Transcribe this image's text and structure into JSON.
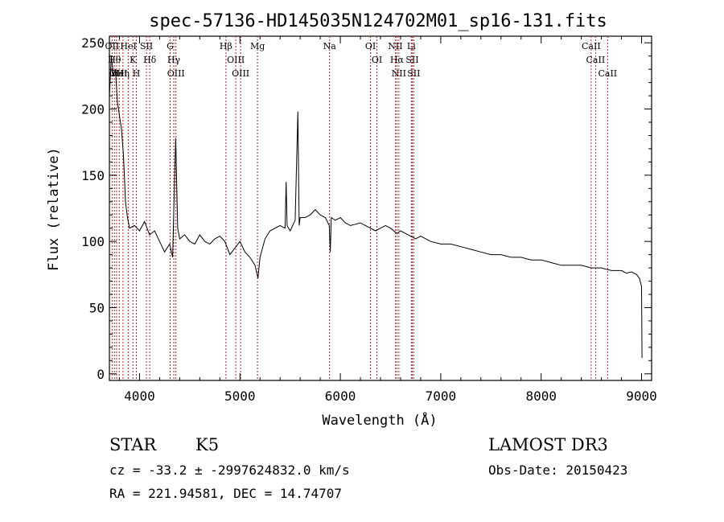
{
  "chart_data": {
    "type": "line",
    "title": "spec-57136-HD145035N124702M01_sp16-131.fits",
    "xlabel": "Wavelength (Å)",
    "ylabel": "Flux (relative)",
    "xlim": [
      3700,
      9100
    ],
    "ylim": [
      -5,
      255
    ],
    "x_ticks": [
      4000,
      5000,
      6000,
      7000,
      8000,
      9000
    ],
    "x_tick_labels": [
      "4000",
      "5000",
      "6000",
      "7000",
      "8000",
      "9000"
    ],
    "y_ticks": [
      0,
      50,
      100,
      150,
      200,
      250
    ],
    "y_tick_labels": [
      "0",
      "50",
      "100",
      "150",
      "200",
      "250"
    ],
    "grid": false,
    "line_color": "#000000",
    "marker_color": "#b22222",
    "series": [
      {
        "x": [
          3700,
          3720,
          3740,
          3760,
          3780,
          3800,
          3820,
          3840,
          3860,
          3880,
          3900,
          3950,
          4000,
          4050,
          4100,
          4150,
          4200,
          4250,
          4300,
          4330,
          4340,
          4360,
          4380,
          4400,
          4450,
          4500,
          4550,
          4600,
          4650,
          4700,
          4750,
          4800,
          4850,
          4900,
          4950,
          5000,
          5050,
          5100,
          5150,
          5180,
          5200,
          5250,
          5300,
          5350,
          5400,
          5450,
          5460,
          5470,
          5500,
          5550,
          5577,
          5590,
          5600,
          5650,
          5700,
          5750,
          5800,
          5850,
          5890,
          5900,
          5910,
          5950,
          6000,
          6050,
          6100,
          6150,
          6200,
          6250,
          6300,
          6350,
          6400,
          6450,
          6500,
          6563,
          6600,
          6650,
          6700,
          6750,
          6800,
          6900,
          7000,
          7100,
          7200,
          7300,
          7400,
          7500,
          7600,
          7700,
          7800,
          7900,
          8000,
          8100,
          8200,
          8300,
          8400,
          8500,
          8600,
          8700,
          8800,
          8850,
          8900,
          8950,
          8980,
          9000,
          9005
        ],
        "y": [
          210,
          240,
          225,
          230,
          205,
          195,
          185,
          165,
          130,
          118,
          110,
          112,
          108,
          115,
          105,
          108,
          100,
          92,
          98,
          88,
          120,
          178,
          110,
          102,
          105,
          100,
          98,
          105,
          100,
          98,
          102,
          104,
          100,
          90,
          95,
          100,
          92,
          88,
          82,
          72,
          88,
          102,
          108,
          110,
          112,
          110,
          145,
          112,
          108,
          116,
          198,
          112,
          118,
          118,
          120,
          124,
          120,
          118,
          112,
          92,
          118,
          116,
          118,
          114,
          112,
          113,
          114,
          112,
          110,
          108,
          110,
          112,
          110,
          106,
          108,
          106,
          104,
          102,
          104,
          100,
          98,
          98,
          96,
          94,
          92,
          90,
          90,
          88,
          88,
          86,
          86,
          84,
          82,
          82,
          82,
          80,
          80,
          78,
          78,
          76,
          77,
          75,
          72,
          66,
          12
        ]
      }
    ],
    "lines": [
      {
        "x": 3727,
        "label": "OII"
      },
      {
        "x": 3750,
        "label": "Hθ"
      },
      {
        "x": 3771,
        "label": "OII"
      },
      {
        "x": 3798,
        "label": "HeI"
      },
      {
        "x": 3835,
        "label": "Hη"
      },
      {
        "x": 3889,
        "label": "HeI"
      },
      {
        "x": 3934,
        "label": "K"
      },
      {
        "x": 3969,
        "label": "H"
      },
      {
        "x": 4069,
        "label": "SII"
      },
      {
        "x": 4102,
        "label": "Hδ"
      },
      {
        "x": 4305,
        "label": "G"
      },
      {
        "x": 4341,
        "label": "Hγ"
      },
      {
        "x": 4363,
        "label": "OIII"
      },
      {
        "x": 4861,
        "label": "Hβ"
      },
      {
        "x": 4959,
        "label": "OIII"
      },
      {
        "x": 5007,
        "label": "OIII"
      },
      {
        "x": 5175,
        "label": "Mg"
      },
      {
        "x": 5893,
        "label": "Na"
      },
      {
        "x": 6300,
        "label": "OI"
      },
      {
        "x": 6364,
        "label": "OI"
      },
      {
        "x": 6548,
        "label": "NII"
      },
      {
        "x": 6563,
        "label": "Hα"
      },
      {
        "x": 6583,
        "label": "NII"
      },
      {
        "x": 6707,
        "label": "Li"
      },
      {
        "x": 6716,
        "label": "SII"
      },
      {
        "x": 6731,
        "label": "SII"
      },
      {
        "x": 8498,
        "label": "CaII"
      },
      {
        "x": 8542,
        "label": "CaII"
      },
      {
        "x": 8662,
        "label": "CaII"
      }
    ]
  },
  "info": {
    "class_label": "STAR",
    "subclass": "K5",
    "survey": "LAMOST DR3",
    "cz_line": "cz = -33.2 ± -2997624832.0 km/s",
    "obs_date": "Obs-Date: 20150423",
    "coords": "RA = 221.94581, DEC =  14.74707"
  }
}
